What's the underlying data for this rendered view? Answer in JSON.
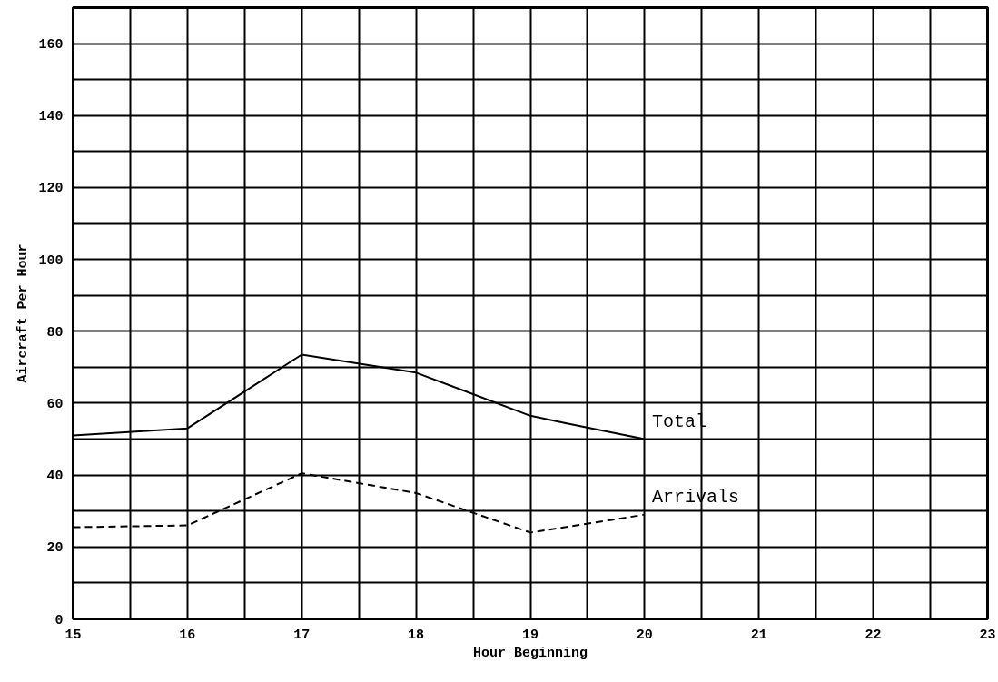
{
  "chart_data": {
    "type": "line",
    "xlabel": "Hour Beginning",
    "ylabel": "Aircraft Per Hour",
    "xlim": [
      15,
      23
    ],
    "ylim": [
      0,
      170
    ],
    "xticks": [
      15,
      {
        "value": 15.5,
        "label": null
      },
      16,
      {
        "value": 16.5,
        "label": null
      },
      17,
      {
        "value": 17.5,
        "label": null
      },
      18,
      {
        "value": 18.5,
        "label": null
      },
      19,
      {
        "value": 19.5,
        "label": null
      },
      20,
      {
        "value": 20.5,
        "label": null
      },
      21,
      {
        "value": 21.5,
        "label": null
      },
      22,
      {
        "value": 22.5,
        "label": null
      },
      23
    ],
    "yticks": [
      0,
      {
        "value": 10,
        "label": null
      },
      20,
      {
        "value": 30,
        "label": null
      },
      40,
      {
        "value": 50,
        "label": null
      },
      60,
      {
        "value": 70,
        "label": null
      },
      80,
      {
        "value": 90,
        "label": null
      },
      100,
      {
        "value": 110,
        "label": null
      },
      120,
      {
        "value": 130,
        "label": null
      },
      140,
      {
        "value": 150,
        "label": null
      },
      160
    ],
    "grid": true,
    "series": [
      {
        "name": "Total",
        "color": "#000000",
        "line_style": "solid",
        "x": [
          15,
          16,
          17,
          18,
          19,
          19.3,
          20
        ],
        "values": [
          51,
          53,
          73.5,
          68.5,
          56.5,
          54.5,
          50
        ]
      },
      {
        "name": "Arrivals",
        "color": "#000000",
        "line_style": "dashed",
        "x": [
          15,
          16,
          17,
          18,
          19,
          20
        ],
        "values": [
          25.5,
          26,
          40.5,
          35,
          24,
          29
        ]
      }
    ]
  }
}
